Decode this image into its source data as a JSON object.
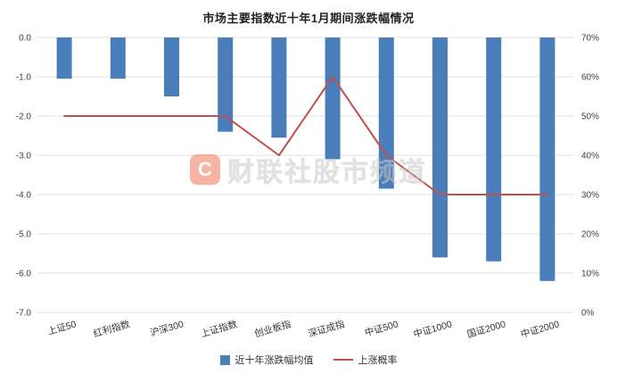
{
  "title": "市场主要指数近十年1月期间涨跌幅情况",
  "watermark": {
    "logo_letter": "C",
    "text": "财联社股市频道"
  },
  "legend": {
    "bar_label": "近十年涨跌幅均值",
    "line_label": "上涨概率"
  },
  "colors": {
    "bar": "#4a7ebb",
    "line": "#c0504d",
    "grid": "#e0e0e0",
    "tick_text": "#404040"
  },
  "chart_data": {
    "type": "bar",
    "title": "市场主要指数近十年1月期间涨跌幅情况",
    "categories": [
      "上证50",
      "红利指数",
      "沪深300",
      "上证指数",
      "创业板指",
      "深证成指",
      "中证500",
      "中证1000",
      "国证2000",
      "中证2000"
    ],
    "series": [
      {
        "name": "近十年涨跌幅均值",
        "type": "bar",
        "axis": "left",
        "color": "#4a7ebb",
        "values": [
          -1.05,
          -1.05,
          -1.5,
          -2.4,
          -2.55,
          -3.1,
          -3.85,
          -5.6,
          -5.7,
          -6.2
        ]
      },
      {
        "name": "上涨概率",
        "type": "line",
        "axis": "right",
        "color": "#c0504d",
        "values": [
          50,
          50,
          50,
          50,
          40,
          60,
          40,
          30,
          30,
          30
        ]
      }
    ],
    "left_axis": {
      "min": -7,
      "max": 0,
      "step": 1,
      "tick_labels": [
        "0.0",
        "-1.0",
        "-2.0",
        "-3.0",
        "-4.0",
        "-5.0",
        "-6.0",
        "-7.0"
      ]
    },
    "right_axis": {
      "min": 0,
      "max": 70,
      "step": 10,
      "tick_labels": [
        "70%",
        "60%",
        "50%",
        "40%",
        "30%",
        "20%",
        "10%",
        "0%"
      ]
    },
    "grid": true,
    "legend_position": "bottom"
  }
}
